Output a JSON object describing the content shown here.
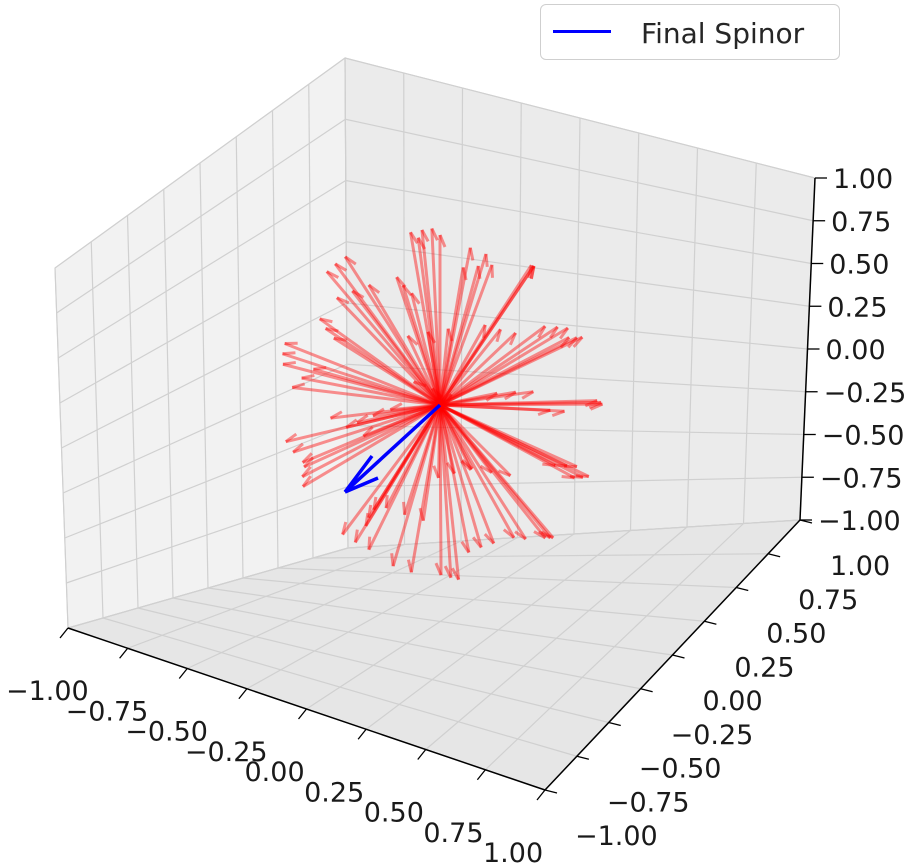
{
  "chart_data": {
    "type": "3d-quiver",
    "title": "",
    "xlabel": "",
    "ylabel": "",
    "zlabel": "",
    "xlim": [
      -1.0,
      1.0
    ],
    "ylim": [
      -1.0,
      1.0
    ],
    "zlim": [
      -1.0,
      1.0
    ],
    "x_ticks": [
      "−1.00",
      "−0.75",
      "−0.50",
      "−0.25",
      "0.00",
      "0.25",
      "0.50",
      "0.75",
      "1.00"
    ],
    "y_ticks": [
      "−1.00",
      "−0.75",
      "−0.50",
      "−0.25",
      "0.00",
      "0.25",
      "0.50",
      "0.75",
      "1.00"
    ],
    "z_ticks": [
      "−1.00",
      "−0.75",
      "−0.50",
      "−0.25",
      "0.00",
      "0.25",
      "0.50",
      "0.75",
      "1.00"
    ],
    "grid": true,
    "legend_position": "top-right",
    "colors": {
      "trajectory": "#ff0000",
      "final": "#0000ff",
      "pane": "#f2f2f2",
      "grid": "#d0d0d0"
    },
    "trajectory_vector_count": 100,
    "final_vector": {
      "label": "Final Spinor",
      "origin": [
        0,
        0,
        0
      ],
      "direction": [
        0.12,
        -0.62,
        -0.35
      ]
    }
  }
}
